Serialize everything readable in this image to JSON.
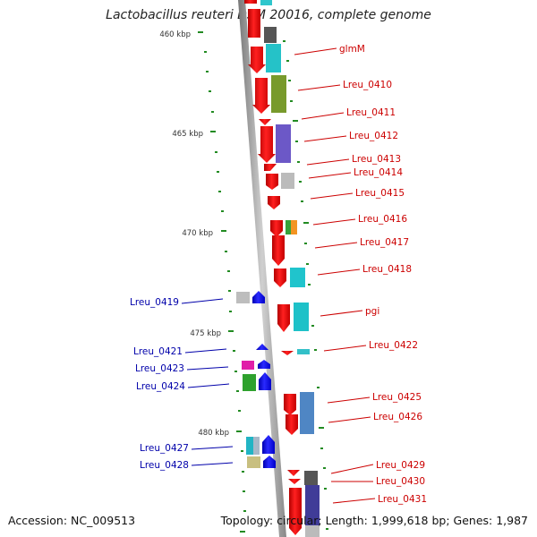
{
  "title": "Lactobacillus reuteri DSM 20016, complete genome",
  "footer": {
    "accession": "Accession: NC_009513",
    "stats": "Topology: circular; Length: 1,999,618 bp; Genes: 1,987"
  },
  "colors": {
    "forward_gene": "#ff0000",
    "reverse_gene": "#0000ff",
    "forward_label": "#cc0000",
    "reverse_label": "#0000aa",
    "backbone": "#999999",
    "gc_tick": "#228b22"
  },
  "scale_ticks": [
    "460 kbp",
    "465 kbp",
    "470 kbp",
    "475 kbp",
    "480 kbp"
  ],
  "forward_genes": [
    "glmM",
    "Lreu_0410",
    "Lreu_0411",
    "Lreu_0412",
    "Lreu_0413",
    "Lreu_0414",
    "Lreu_0415",
    "Lreu_0416",
    "Lreu_0417",
    "Lreu_0418",
    "pgi",
    "Lreu_0422",
    "Lreu_0425",
    "Lreu_0426",
    "Lreu_0429",
    "Lreu_0430",
    "Lreu_0431"
  ],
  "reverse_genes": [
    "Lreu_0419",
    "Lreu_0421",
    "Lreu_0423",
    "Lreu_0424",
    "Lreu_0427",
    "Lreu_0428"
  ]
}
